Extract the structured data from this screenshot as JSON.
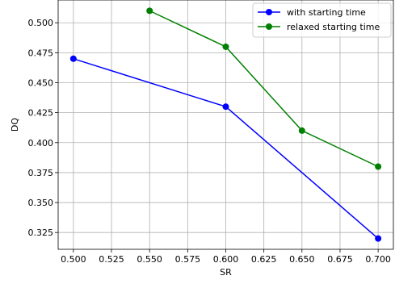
{
  "chart_data": {
    "type": "line",
    "title": "",
    "xlabel": "SR",
    "ylabel": "DQ",
    "xlim": [
      0.49,
      0.71
    ],
    "ylim": [
      0.311,
      0.519
    ],
    "grid": true,
    "legend_position": "top-right",
    "x_ticks": [
      0.5,
      0.525,
      0.55,
      0.575,
      0.6,
      0.625,
      0.65,
      0.675,
      0.7
    ],
    "x_tick_labels": [
      "0.500",
      "0.525",
      "0.550",
      "0.575",
      "0.600",
      "0.625",
      "0.650",
      "0.675",
      "0.700"
    ],
    "y_ticks": [
      0.325,
      0.35,
      0.375,
      0.4,
      0.425,
      0.45,
      0.475,
      0.5
    ],
    "y_tick_labels": [
      "0.325",
      "0.350",
      "0.375",
      "0.400",
      "0.425",
      "0.450",
      "0.475",
      "0.500"
    ],
    "series": [
      {
        "name": "with starting time",
        "color": "#0000ff",
        "marker": "circle",
        "points": [
          [
            0.5,
            0.47
          ],
          [
            0.6,
            0.43
          ],
          [
            0.7,
            0.32
          ]
        ]
      },
      {
        "name": "relaxed starting time",
        "color": "#008000",
        "marker": "circle",
        "points": [
          [
            0.55,
            0.51
          ],
          [
            0.6,
            0.48
          ],
          [
            0.65,
            0.41
          ],
          [
            0.7,
            0.38
          ]
        ]
      }
    ]
  }
}
